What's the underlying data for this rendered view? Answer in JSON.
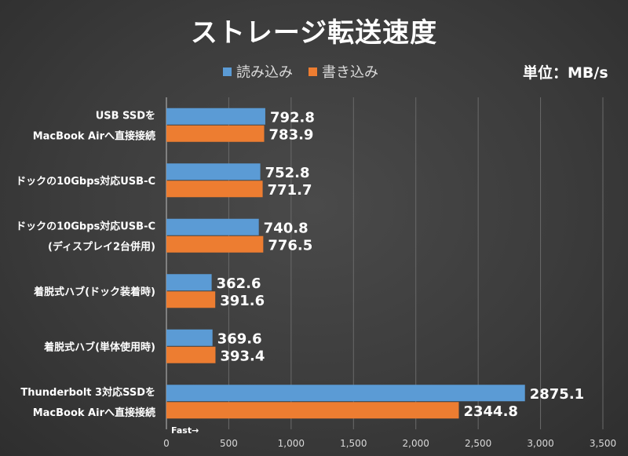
{
  "chart_data": {
    "type": "bar",
    "orientation": "horizontal",
    "title": "ストレージ転送速度",
    "unit_label": "単位：MB/s",
    "axis_note": "Fast→",
    "categories": [
      [
        "USB SSDを",
        "MacBook Airへ直接接続"
      ],
      [
        "ドックの10Gbps対応USB-C"
      ],
      [
        "ドックの10Gbps対応USB-C",
        "(ディスプレイ2台併用)"
      ],
      [
        "着脱式ハブ(ドック装着時)"
      ],
      [
        "着脱式ハブ(単体使用時)"
      ],
      [
        "Thunderbolt 3対応SSDを",
        "MacBook Airへ直接接続"
      ]
    ],
    "series": [
      {
        "name": "読み込み",
        "color": "#5b9bd5",
        "values": [
          792.8,
          752.8,
          740.8,
          362.6,
          369.6,
          2875.1
        ],
        "labels": [
          "792.8",
          "752.8",
          "740.8",
          "362.6",
          "369.6",
          "2875.1"
        ]
      },
      {
        "name": "書き込み",
        "color": "#ed7d31",
        "values": [
          783.9,
          771.7,
          776.5,
          391.6,
          393.4,
          2344.8
        ],
        "labels": [
          "783.9",
          "771.7",
          "776.5",
          "391.6",
          "393.4",
          "2344.8"
        ]
      }
    ],
    "xlim": [
      0,
      3500
    ],
    "xticks": [
      0,
      500,
      1000,
      1500,
      2000,
      2500,
      3000,
      3500
    ],
    "xtick_labels": [
      "0",
      "500",
      "1,000",
      "1,500",
      "2,000",
      "2,500",
      "3,000",
      "3,500"
    ],
    "grid": true,
    "legend_position": "top"
  }
}
